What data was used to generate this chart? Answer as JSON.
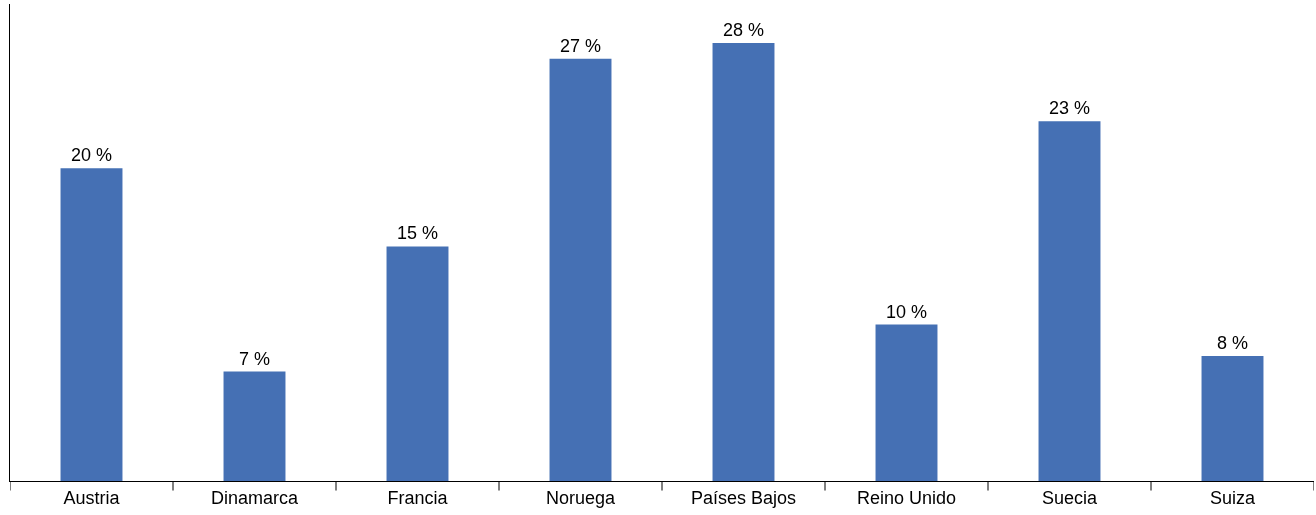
{
  "chart_data": {
    "type": "bar",
    "categories": [
      "Austria",
      "Dinamarca",
      "Francia",
      "Noruega",
      "Países Bajos",
      "Reino Unido",
      "Suecia",
      "Suiza"
    ],
    "values": [
      20,
      7,
      15,
      27,
      28,
      10,
      23,
      8
    ],
    "value_labels": [
      "20 %",
      "7 %",
      "15 %",
      "27 %",
      "28 %",
      "10 %",
      "23 %",
      "8 %"
    ],
    "color": "#4570b4",
    "ylim": [
      0,
      30.5
    ],
    "tick_labels": "x",
    "legend": false
  }
}
